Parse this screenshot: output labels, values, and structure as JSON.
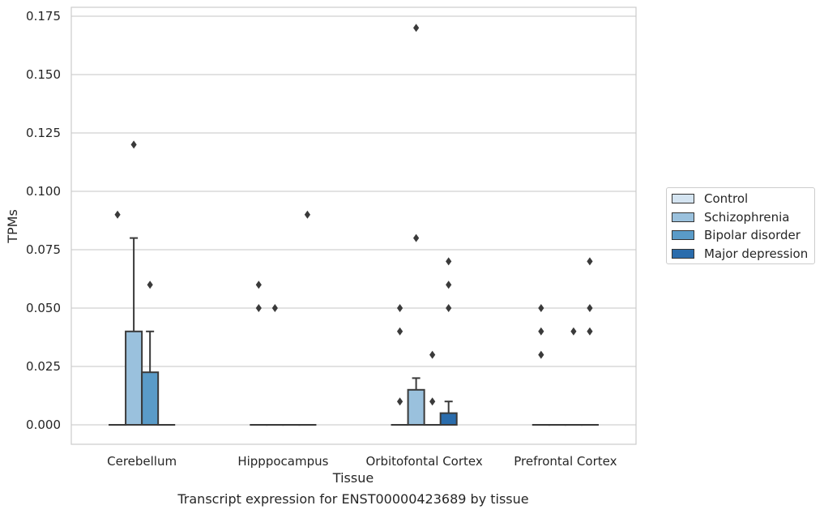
{
  "chart_data": {
    "type": "box",
    "title": "",
    "xlabel": "Tissue",
    "ylabel": "TPMs",
    "caption": "Transcript expression for ENST00000423689 by tissue",
    "categories": [
      "Cerebellum",
      "Hipppocampus",
      "Orbitofontal Cortex",
      "Prefrontal Cortex"
    ],
    "ylim": [
      -0.008,
      0.1785
    ],
    "yticks": [
      "0.000",
      "0.025",
      "0.050",
      "0.075",
      "0.100",
      "0.125",
      "0.150",
      "0.175"
    ],
    "grid": true,
    "legend_position": "right",
    "series": [
      {
        "name": "Control",
        "color": "#d4e4f1",
        "boxes": [
          {
            "q1": 0,
            "median": 0,
            "q3": 0,
            "whisker_low": 0,
            "whisker_high": 0,
            "outliers": [
              0.09
            ]
          },
          {
            "q1": 0,
            "median": 0,
            "q3": 0,
            "whisker_low": 0,
            "whisker_high": 0,
            "outliers": [
              0.05,
              0.06
            ]
          },
          {
            "q1": 0,
            "median": 0,
            "q3": 0,
            "whisker_low": 0,
            "whisker_high": 0,
            "outliers": [
              0.01,
              0.04,
              0.05
            ]
          },
          {
            "q1": 0,
            "median": 0,
            "q3": 0,
            "whisker_low": 0,
            "whisker_high": 0,
            "outliers": [
              0.03,
              0.04,
              0.05
            ]
          }
        ]
      },
      {
        "name": "Schizophrenia",
        "color": "#9ac1dd",
        "boxes": [
          {
            "q1": 0,
            "median": 0,
            "q3": 0.04,
            "whisker_low": 0,
            "whisker_high": 0.08,
            "outliers": [
              0.12
            ]
          },
          {
            "q1": 0,
            "median": 0,
            "q3": 0,
            "whisker_low": 0,
            "whisker_high": 0,
            "outliers": [
              0.05
            ]
          },
          {
            "q1": 0,
            "median": 0,
            "q3": 0.015,
            "whisker_low": 0,
            "whisker_high": 0.02,
            "outliers": [
              0.08,
              0.17
            ]
          },
          {
            "q1": 0,
            "median": 0,
            "q3": 0,
            "whisker_low": 0,
            "whisker_high": 0,
            "outliers": []
          }
        ]
      },
      {
        "name": "Bipolar disorder",
        "color": "#5a9bc8",
        "boxes": [
          {
            "q1": 0,
            "median": 0,
            "q3": 0.0225,
            "whisker_low": 0,
            "whisker_high": 0.04,
            "outliers": [
              0.06
            ]
          },
          {
            "q1": 0,
            "median": 0,
            "q3": 0,
            "whisker_low": 0,
            "whisker_high": 0,
            "outliers": []
          },
          {
            "q1": 0,
            "median": 0,
            "q3": 0,
            "whisker_low": 0,
            "whisker_high": 0,
            "outliers": [
              0.01,
              0.03
            ]
          },
          {
            "q1": 0,
            "median": 0,
            "q3": 0,
            "whisker_low": 0,
            "whisker_high": 0,
            "outliers": [
              0.04
            ]
          }
        ]
      },
      {
        "name": "Major depression",
        "color": "#2a6cac",
        "boxes": [
          {
            "q1": 0,
            "median": 0,
            "q3": 0,
            "whisker_low": 0,
            "whisker_high": 0,
            "outliers": []
          },
          {
            "q1": 0,
            "median": 0,
            "q3": 0,
            "whisker_low": 0,
            "whisker_high": 0,
            "outliers": [
              0.09
            ]
          },
          {
            "q1": 0,
            "median": 0,
            "q3": 0.005,
            "whisker_low": 0,
            "whisker_high": 0.01,
            "outliers": [
              0.05,
              0.06,
              0.07
            ]
          },
          {
            "q1": 0,
            "median": 0,
            "q3": 0,
            "whisker_low": 0,
            "whisker_high": 0,
            "outliers": [
              0.04,
              0.05,
              0.07
            ]
          }
        ]
      }
    ]
  }
}
